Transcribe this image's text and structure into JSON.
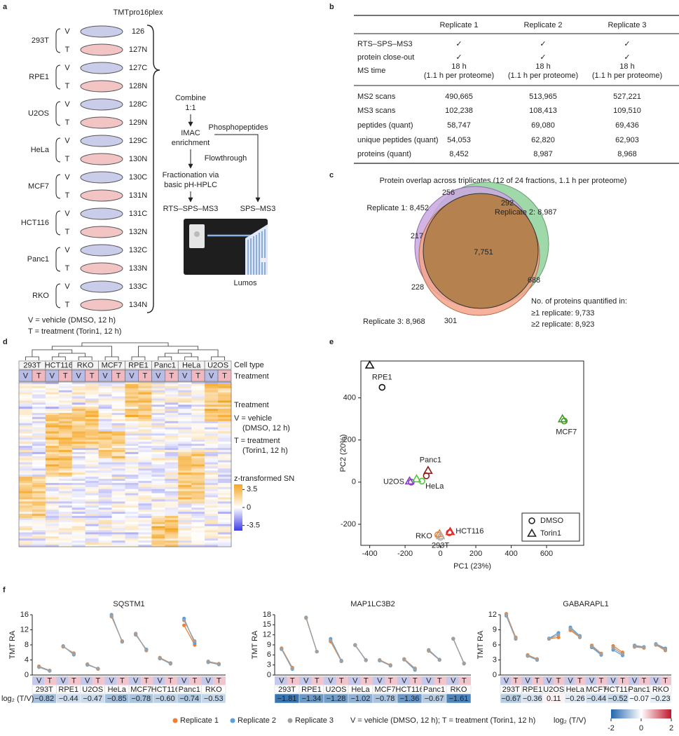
{
  "panels": {
    "a": {
      "letter": "a",
      "title": "TMTpro16plex",
      "cell_lines": [
        "293T",
        "RPE1",
        "U2OS",
        "HeLa",
        "MCF7",
        "HCT116",
        "Panc1",
        "RKO"
      ],
      "treatments": [
        "V",
        "T"
      ],
      "channels": [
        "126",
        "127N",
        "127C",
        "128N",
        "128C",
        "129N",
        "129C",
        "130N",
        "130C",
        "131N",
        "131C",
        "132N",
        "132C",
        "133N",
        "133C",
        "134N"
      ],
      "channel_colors": [
        "#e8761e",
        "#d7191c",
        "#c8102e",
        "#e8338a",
        "#c99a12",
        "#f0a830",
        "#b8a400",
        "#8cc63f",
        "#12a04a",
        "#5f9e2f",
        "#3fa535",
        "#9cc3e6",
        "#18a4d8",
        "#7b3fb4",
        "#1f2d8f",
        "#222222"
      ],
      "workflow": {
        "combine": [
          "Combine",
          "1:1"
        ],
        "enrich": [
          "IMAC",
          "enrichment"
        ],
        "phospho": "Phosphopeptides",
        "flow": "Flowthrough",
        "fractionation": [
          "Fractionation via",
          "basic pH-HPLC"
        ],
        "method_main": "RTS–SPS–MS3",
        "method_phospho": "SPS–MS3",
        "instrument": "Lumos"
      },
      "footnotes": [
        "V = vehicle (DMSO, 12 h)",
        "T = treatment (Torin1, 12 h)"
      ]
    },
    "b": {
      "letter": "b",
      "table": {
        "header": [
          "Replicate 1",
          "Replicate 2",
          "Replicate 3"
        ],
        "sections": [
          [
            {
              "label": "RTS–SPS–MS3",
              "cells": [
                "✓",
                "✓",
                "✓"
              ]
            },
            {
              "label": "protein close-out",
              "cells": [
                "✓",
                "✓",
                "✓"
              ]
            },
            {
              "label": "MS time",
              "cells": [
                [
                  "18 h",
                  "(1.1 h per proteome)"
                ],
                [
                  "18 h",
                  "(1.1 h per proteome)"
                ],
                [
                  "18 h",
                  "(1.1 h per proteome)"
                ]
              ]
            }
          ],
          [
            {
              "label": "MS2 scans",
              "cells": [
                "490,665",
                "513,965",
                "527,221"
              ]
            },
            {
              "label": "MS3 scans",
              "cells": [
                "102,238",
                "108,413",
                "109,510"
              ]
            },
            {
              "label": "peptides (quant)",
              "cells": [
                "58,747",
                "69,080",
                "69,436"
              ]
            },
            {
              "label": "unique peptides (quant)",
              "cells": [
                "54,053",
                "62,820",
                "62,903"
              ]
            },
            {
              "label": "proteins (quant)",
              "cells": [
                "8,452",
                "8,987",
                "8,968"
              ]
            }
          ]
        ]
      }
    },
    "c": {
      "letter": "c",
      "title": "Protein overlap across triplicates (12 of 24 fractions, 1.1 h per proteome)",
      "sets": [
        "Replicate 1: 8,452",
        "Replicate 2: 8,987",
        "Replicate 3: 8,968"
      ],
      "regions": [
        "256",
        "292",
        "217",
        "7,751",
        "688",
        "228",
        "301"
      ],
      "summary": [
        "No. of proteins quantified in:",
        "≥1 replicate: 9,733",
        "≥2 replicate: 8,923"
      ]
    },
    "d": {
      "letter": "d",
      "cell_types": [
        "293T",
        "HCT116",
        "RKO",
        "MCF7",
        "RPE1",
        "Panc1",
        "HeLa",
        "U2OS"
      ],
      "row_labels": [
        "Cell type",
        "Treatment"
      ],
      "treatments": [
        "V",
        "T"
      ],
      "legend_title": "Treatment",
      "legend_lines": [
        "V = vehicle",
        "(DMSO, 12 h)",
        "T = treatment",
        "(Torin1, 12 h)"
      ],
      "colorbar_label": "z-transformed SN",
      "colorbar_lim": [
        -4.5,
        4.5
      ],
      "colorbar_ticks": [
        3.5,
        0,
        -3.5
      ],
      "colorbar_colors": [
        "#3b3be8",
        "#ffffff",
        "#f5a623"
      ]
    },
    "e": {
      "letter": "e"
    },
    "f": {
      "letter": "f",
      "legend_note": "V = vehicle (DMSO, 12 h); T = treatment (Torin1, 12 h)",
      "colorbar_label": "log₂ (T/V)",
      "colorbar_lim": [
        -2,
        2
      ],
      "colorbar_ticks": [
        -2,
        0,
        2
      ],
      "colorbar_colors": [
        "#2166ac",
        "#ffffff",
        "#c0182b"
      ]
    }
  },
  "chart_data": [
    {
      "type": "scatter",
      "x_label": "PC1 (23%)",
      "y_label": "PC2 (20%)",
      "categories": [
        "RPE1",
        "MCF7",
        "Panc1",
        "U2OS",
        "HeLa",
        "RKO",
        "HCT116",
        "293T"
      ],
      "point_colors": [
        "#111111",
        "#3c9a1e",
        "#8b1a1a",
        "#8a3cc8",
        "#4fcc3a",
        "#e8843a",
        "#e02424",
        "#b0b0b0"
      ],
      "series": [
        {
          "name": "DMSO",
          "marker": "circle",
          "x": [
            -330,
            700,
            -80,
            -165,
            -105,
            -15,
            50,
            0
          ],
          "y": [
            450,
            290,
            30,
            0,
            5,
            -250,
            -240,
            -262
          ]
        },
        {
          "name": "Torin1",
          "marker": "triangle",
          "x": [
            -400,
            690,
            -70,
            -175,
            -135,
            -5,
            55,
            0
          ],
          "y": [
            555,
            300,
            55,
            5,
            15,
            -245,
            -235,
            -255
          ]
        }
      ],
      "xlim": [
        -450,
        810
      ],
      "ylim": [
        -300,
        575
      ],
      "xticks": [
        -400,
        -200,
        0,
        200,
        400,
        600
      ],
      "yticks": [
        -200,
        0,
        200,
        400
      ],
      "legend": "lower right"
    },
    {
      "type": "line",
      "title": "SQSTM1",
      "y_label": "TMT RA",
      "row_label": "log₂ (T/V)",
      "categories": [
        "V",
        "T",
        "V",
        "T",
        "V",
        "T",
        "V",
        "T",
        "V",
        "T",
        "V",
        "T",
        "V",
        "T",
        "V",
        "T"
      ],
      "groups": [
        "293T",
        "RPE1",
        "U2OS",
        "HeLa",
        "MCF7",
        "HCT116",
        "Panc1",
        "RKO"
      ],
      "series": [
        {
          "name": "Replicate 1",
          "color": "#f08030",
          "values": [
            2.3,
            1.2,
            7.5,
            5.8,
            2.9,
            1.6,
            15.5,
            9.0,
            11.0,
            6.5,
            4.6,
            3.2,
            13.2,
            8.0,
            3.6,
            3.0
          ]
        },
        {
          "name": "Replicate 2",
          "color": "#5aa0dc",
          "values": [
            2.1,
            1.1,
            7.7,
            5.4,
            2.7,
            1.7,
            16.0,
            8.8,
            10.7,
            6.8,
            4.4,
            3.0,
            15.0,
            8.5,
            3.4,
            2.8
          ]
        },
        {
          "name": "Replicate 3",
          "color": "#a0a0a0",
          "values": [
            2.2,
            1.2,
            7.6,
            5.6,
            2.8,
            1.7,
            15.7,
            8.9,
            10.9,
            6.6,
            4.5,
            3.1,
            14.5,
            9.0,
            3.5,
            2.9
          ]
        }
      ],
      "ylim": [
        0,
        16
      ],
      "yticks": [
        0,
        4,
        8,
        12,
        16
      ],
      "log2_ratio": {
        "values": [
          -0.82,
          -0.44,
          -0.47,
          -0.85,
          -0.78,
          -0.6,
          -0.74,
          -0.53
        ],
        "value_labels": [
          "−0.82",
          "−0.44",
          "−0.47",
          "−0.85",
          "−0.78",
          "−0.60",
          "−0.74",
          "−0.53"
        ]
      }
    },
    {
      "type": "line",
      "title": "MAP1LC3B2",
      "y_label": "TMT RA",
      "categories": [
        "V",
        "T",
        "V",
        "T",
        "V",
        "T",
        "V",
        "T",
        "V",
        "T",
        "V",
        "T",
        "V",
        "T",
        "V",
        "T"
      ],
      "groups": [
        "293T",
        "RPE1",
        "U2OS",
        "HeLa",
        "MCF7",
        "HCT116",
        "Panc1",
        "RKO"
      ],
      "series": [
        {
          "name": "Replicate 1",
          "color": "#f08030",
          "values": [
            8.0,
            2.2,
            17.0,
            7.0,
            10.0,
            4.1,
            9.0,
            4.4,
            4.5,
            3.0,
            4.8,
            2.0,
            7.2,
            4.5,
            10.8,
            3.5
          ]
        },
        {
          "name": "Replicate 2",
          "color": "#5aa0dc",
          "values": [
            7.7,
            1.8,
            17.2,
            7.0,
            10.8,
            4.3,
            8.9,
            4.5,
            4.3,
            2.8,
            4.6,
            1.5,
            7.5,
            4.6,
            10.9,
            3.4
          ]
        },
        {
          "name": "Replicate 3",
          "color": "#a0a0a0",
          "values": [
            7.8,
            2.0,
            17.1,
            7.0,
            10.4,
            4.2,
            8.9,
            4.4,
            4.4,
            2.9,
            4.7,
            1.8,
            7.3,
            4.5,
            10.8,
            3.5
          ]
        }
      ],
      "ylim": [
        0,
        18
      ],
      "yticks": [
        0,
        3,
        6,
        9,
        12,
        15,
        18
      ],
      "log2_ratio": {
        "values": [
          -1.81,
          -1.34,
          -1.28,
          -1.02,
          -0.78,
          -1.36,
          -0.67,
          -1.61
        ],
        "value_labels": [
          "−1.81",
          "−1.34",
          "−1.28",
          "−1.02",
          "−0.78",
          "−1.36",
          "−0.67",
          "−1.61"
        ]
      }
    },
    {
      "type": "line",
      "title": "GABARAPL1",
      "y_label": "TMT RA",
      "categories": [
        "V",
        "T",
        "V",
        "T",
        "V",
        "T",
        "V",
        "T",
        "V",
        "T",
        "V",
        "T",
        "V",
        "T",
        "V",
        "T"
      ],
      "groups": [
        "293T",
        "RPE1",
        "U2OS",
        "HeLa",
        "MCF7",
        "HCT116",
        "Panc1",
        "RKO"
      ],
      "series": [
        {
          "name": "Replicate 1",
          "color": "#f08030",
          "values": [
            12.2,
            7.5,
            4.0,
            3.2,
            7.2,
            7.5,
            8.9,
            7.5,
            5.9,
            4.3,
            5.8,
            4.5,
            5.6,
            5.4,
            6.0,
            4.9
          ]
        },
        {
          "name": "Replicate 2",
          "color": "#5aa0dc",
          "values": [
            11.8,
            7.2,
            3.8,
            3.0,
            7.3,
            8.4,
            9.5,
            7.8,
            5.5,
            4.0,
            5.0,
            3.9,
            5.9,
            5.6,
            6.2,
            5.3
          ]
        },
        {
          "name": "Replicate 3",
          "color": "#a0a0a0",
          "values": [
            12.0,
            7.3,
            3.9,
            3.1,
            7.2,
            8.0,
            9.2,
            7.6,
            5.7,
            4.2,
            5.4,
            4.2,
            5.7,
            5.5,
            6.1,
            5.1
          ]
        }
      ],
      "ylim": [
        0,
        12
      ],
      "yticks": [
        0,
        3,
        6,
        9,
        12
      ],
      "log2_ratio": {
        "values": [
          -0.67,
          -0.36,
          0.11,
          -0.26,
          -0.44,
          -0.52,
          -0.07,
          -0.23
        ],
        "value_labels": [
          "−0.67",
          "−0.36",
          "0.11",
          "−0.26",
          "−0.44",
          "−0.52",
          "−0.07",
          "−0.23"
        ]
      }
    }
  ]
}
